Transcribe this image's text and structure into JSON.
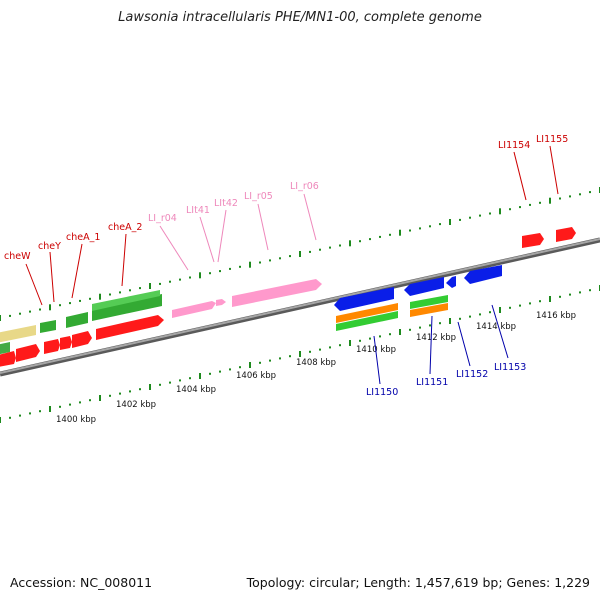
{
  "title": "Lawsonia intracellularis PHE/MN1-00, complete genome",
  "footer": {
    "accession": "Accession: NC_008011",
    "stats": "Topology: circular; Length: 1,457,619 bp; Genes: 1,229"
  },
  "colors": {
    "backbone": "#8c8c8c",
    "forward_label": "#cc0000",
    "pink_label": "#ee88bb",
    "reverse_label": "#0000aa",
    "ruler_tick": "#1e8a1e"
  },
  "ruler_labels": [
    "1400 kbp",
    "1402 kbp",
    "1404 kbp",
    "1406 kbp",
    "1408 kbp",
    "1410 kbp",
    "1412 kbp",
    "1414 kbp",
    "1416 kbp"
  ],
  "gene_labels": [
    "cheW",
    "cheY",
    "cheA_1",
    "cheA_2",
    "LI_r04",
    "LIt41",
    "LIt42",
    "LI_r05",
    "LI_r06",
    "LI1154",
    "LI1155",
    "LI1150",
    "LI1151",
    "LI1152",
    "LI1153"
  ]
}
